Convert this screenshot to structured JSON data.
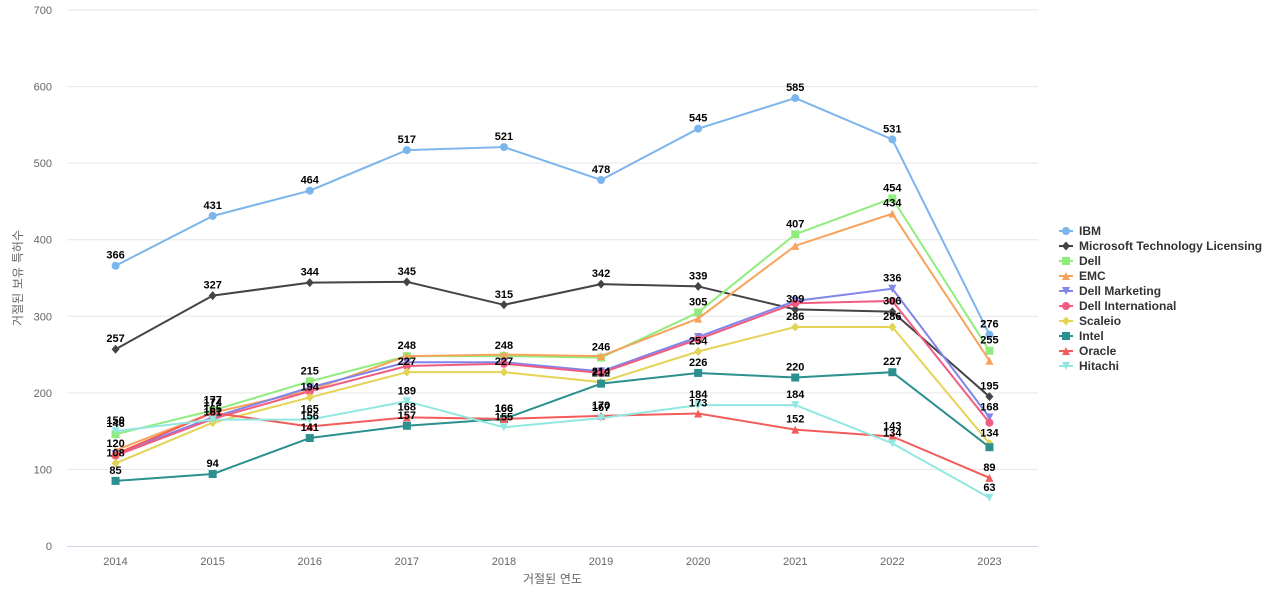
{
  "chart_data": {
    "type": "line",
    "xlabel": "거절된 연도",
    "ylabel": "거절된 보유 특허수",
    "ylim": [
      0,
      700
    ],
    "yticks": [
      0,
      100,
      200,
      300,
      400,
      500,
      600,
      700
    ],
    "grid": true,
    "legend_position": "right",
    "categories": [
      "2014",
      "2015",
      "2016",
      "2017",
      "2018",
      "2019",
      "2020",
      "2021",
      "2022",
      "2023"
    ],
    "series": [
      {
        "name": "IBM",
        "color": "#7cb5ec",
        "marker": "circle",
        "values": [
          366,
          431,
          464,
          517,
          521,
          478,
          545,
          585,
          531,
          276
        ]
      },
      {
        "name": "Microsoft Technology Licensing",
        "color": "#434348",
        "marker": "diamond",
        "values": [
          257,
          327,
          344,
          345,
          315,
          342,
          339,
          309,
          306,
          195
        ]
      },
      {
        "name": "Dell",
        "color": "#90ed7d",
        "marker": "square",
        "values": [
          146,
          177,
          215,
          248,
          248,
          246,
          305,
          407,
          454,
          255
        ]
      },
      {
        "name": "EMC",
        "color": "#f7a35c",
        "marker": "triangle",
        "values": [
          125,
          174,
          203,
          248,
          250,
          248,
          297,
          392,
          434,
          242
        ]
      },
      {
        "name": "Dell Marketing",
        "color": "#8085e9",
        "marker": "triangle-down",
        "values": [
          120,
          168,
          207,
          240,
          240,
          228,
          273,
          320,
          336,
          168
        ]
      },
      {
        "name": "Dell International",
        "color": "#f15c80",
        "marker": "circle",
        "values": [
          118,
          166,
          202,
          235,
          238,
          226,
          270,
          317,
          320,
          161
        ]
      },
      {
        "name": "Scaleio",
        "color": "#e4d354",
        "marker": "diamond",
        "values": [
          108,
          161,
          194,
          227,
          227,
          214,
          254,
          286,
          286,
          134
        ]
      },
      {
        "name": "Intel",
        "color": "#2b908f",
        "marker": "square",
        "values": [
          85,
          94,
          141,
          157,
          166,
          212,
          226,
          220,
          227,
          129
        ]
      },
      {
        "name": "Oracle",
        "color": "#f45b5b",
        "marker": "triangle",
        "values": [
          120,
          174,
          156,
          168,
          166,
          170,
          173,
          152,
          143,
          89
        ]
      },
      {
        "name": "Hitachi",
        "color": "#91e8e1",
        "marker": "triangle-down",
        "values": [
          150,
          165,
          165,
          189,
          155,
          167,
          184,
          184,
          134,
          63
        ]
      }
    ],
    "data_labels": [
      {
        "series": 0,
        "points": [
          0,
          1,
          2,
          3,
          4,
          5,
          6,
          7,
          8,
          9
        ]
      },
      {
        "series": 1,
        "points": [
          0,
          1,
          2,
          3,
          4,
          5,
          6,
          7,
          8,
          9
        ]
      },
      {
        "series": 2,
        "points": [
          0,
          1,
          2,
          3,
          4,
          5,
          6,
          7,
          8,
          9
        ]
      },
      {
        "series": 3,
        "points": [
          8
        ]
      },
      {
        "series": 4,
        "points": [
          8,
          9
        ]
      },
      {
        "series": 6,
        "points": [
          0,
          1,
          2,
          3,
          4,
          5,
          6,
          7,
          8,
          9
        ]
      },
      {
        "series": 7,
        "points": [
          0,
          1,
          2,
          3,
          4,
          5,
          6,
          7,
          8
        ]
      },
      {
        "series": 8,
        "points": [
          0,
          1,
          2,
          3,
          4,
          5,
          6,
          7,
          8,
          9
        ]
      },
      {
        "series": 9,
        "points": [
          0,
          1,
          2,
          3,
          4,
          5,
          6,
          7,
          8,
          9
        ]
      }
    ]
  }
}
